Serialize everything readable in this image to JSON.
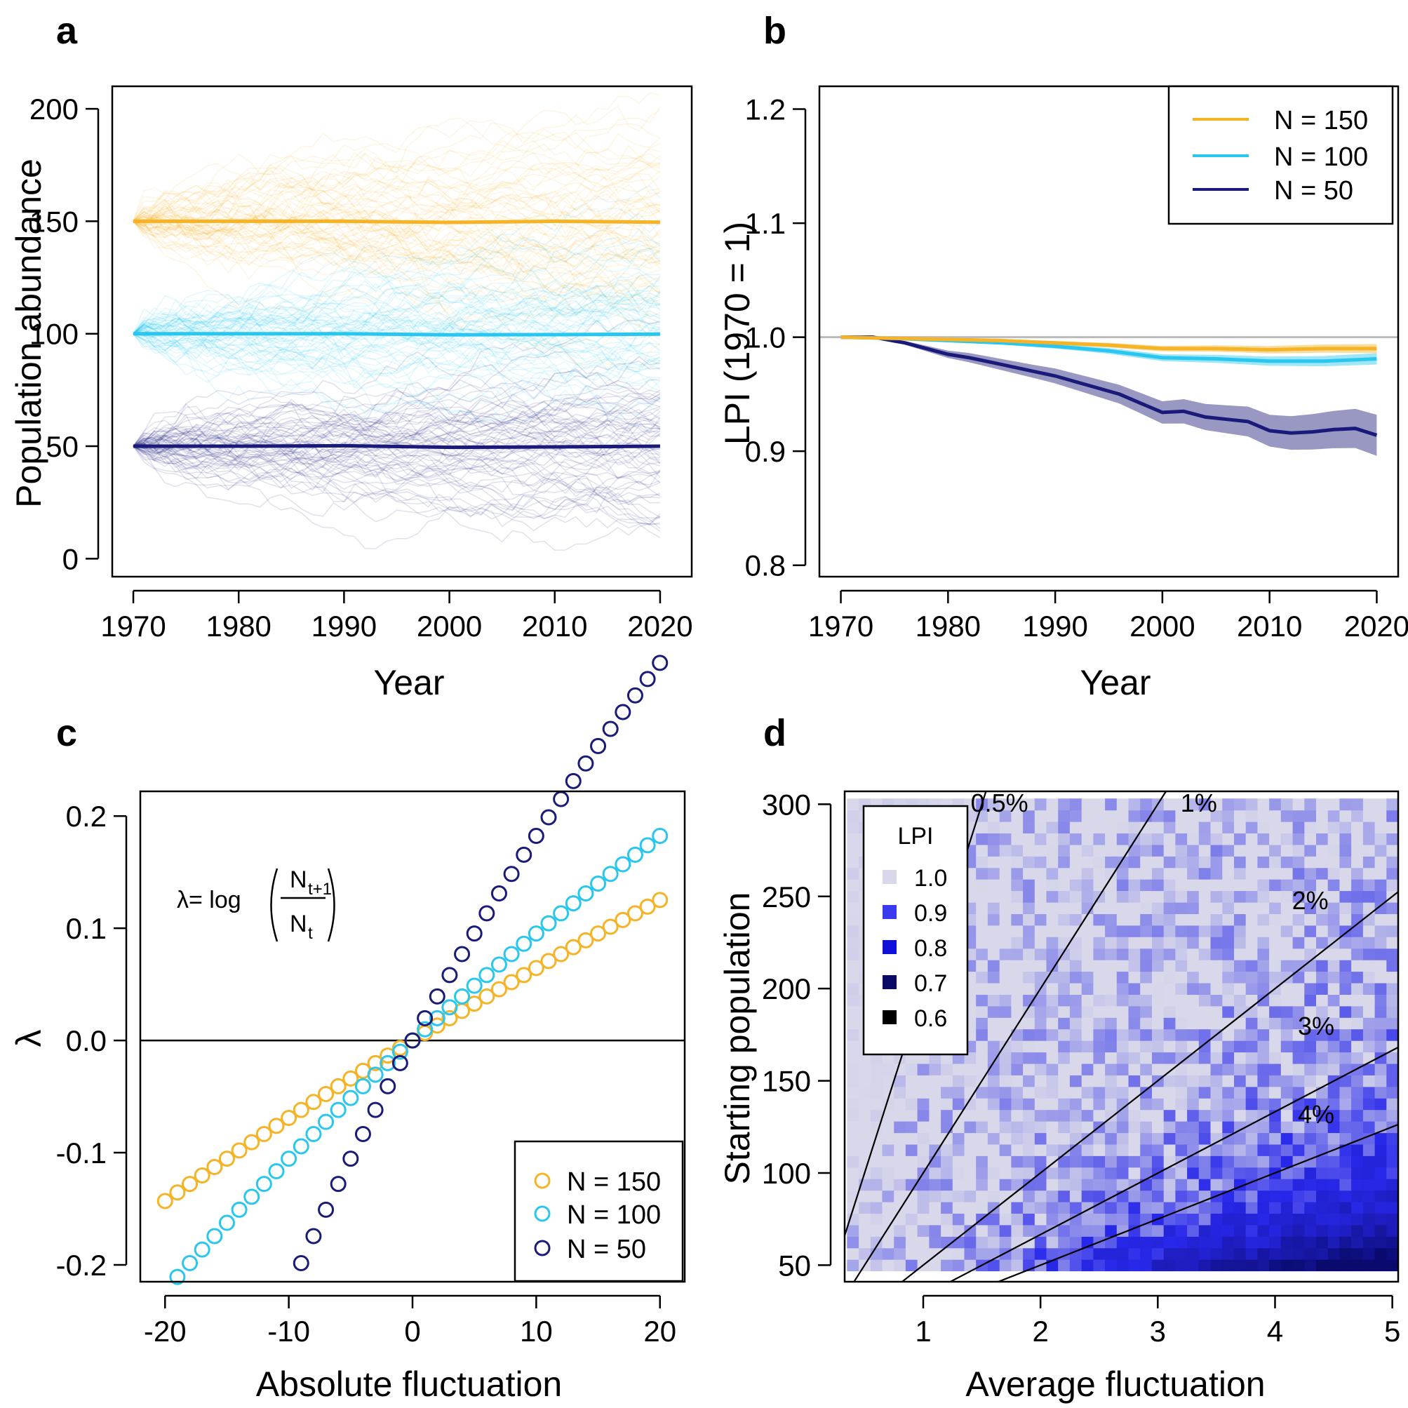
{
  "colors": {
    "N150": "#F5B325",
    "N100": "#29C7F0",
    "N50": "#1A1A7A",
    "grid_ref": "#BBBBBB",
    "heat_1_0": "#D8D8EA",
    "heat_0_9": "#3A3AF0",
    "heat_0_8": "#1010D8",
    "heat_0_7": "#0A0A66",
    "heat_0_6": "#000000"
  },
  "chart_data": [
    {
      "panel": "a",
      "type": "line",
      "xlabel": "Year",
      "ylabel": "Population abundance",
      "xlim": [
        1968,
        2023
      ],
      "ylim": [
        -8,
        210
      ],
      "xticks": [
        "1970",
        "1980",
        "1990",
        "2000",
        "2010",
        "2020"
      ],
      "yticks": [
        "0",
        "50",
        "100",
        "150",
        "200"
      ],
      "series": [
        {
          "name": "N = 150",
          "x": [
            1970,
            1980,
            1990,
            2000,
            2010,
            2020
          ],
          "y": [
            150,
            150,
            150,
            149.5,
            150,
            149.6
          ],
          "spread_sd_start": 0,
          "spread_sd_end": 26
        },
        {
          "name": "N = 100",
          "x": [
            1970,
            1980,
            1990,
            2000,
            2010,
            2020
          ],
          "y": [
            100,
            100,
            100,
            99.5,
            99.6,
            99.8
          ],
          "spread_sd_start": 0,
          "spread_sd_end": 24
        },
        {
          "name": "N = 50",
          "x": [
            1970,
            1980,
            1990,
            2000,
            2010,
            2020
          ],
          "y": [
            50,
            50,
            50.2,
            49.5,
            49.7,
            50
          ],
          "spread_sd_start": 0,
          "spread_sd_end": 20
        }
      ]
    },
    {
      "panel": "b",
      "type": "line",
      "xlabel": "Year",
      "ylabel": "LPI (1970 = 1)",
      "xlim": [
        1968,
        2022
      ],
      "ylim": [
        0.79,
        1.22
      ],
      "xticks": [
        "1970",
        "1980",
        "1990",
        "2000",
        "2010",
        "2020"
      ],
      "yticks": [
        "0.8",
        "0.9",
        "1.0",
        "1.1",
        "1.2"
      ],
      "reference_line": 1.0,
      "legend_position": "top-right",
      "series": [
        {
          "name": "N = 150",
          "x": [
            1970,
            1975,
            1980,
            1985,
            1990,
            1995,
            2000,
            2005,
            2010,
            2015,
            2020
          ],
          "y": [
            1.0,
            0.999,
            0.998,
            0.997,
            0.995,
            0.993,
            0.99,
            0.99,
            0.989,
            0.99,
            0.99
          ],
          "band": 0.004
        },
        {
          "name": "N = 100",
          "x": [
            1970,
            1975,
            1980,
            1985,
            1990,
            1995,
            2000,
            2005,
            2010,
            2015,
            2020
          ],
          "y": [
            1.0,
            0.999,
            0.997,
            0.995,
            0.992,
            0.988,
            0.982,
            0.981,
            0.979,
            0.979,
            0.981
          ],
          "band": 0.005
        },
        {
          "name": "N = 50",
          "x": [
            1970,
            1973,
            1976,
            1978,
            1980,
            1982,
            1985,
            1988,
            1990,
            1993,
            1996,
            1998,
            2000,
            2002,
            2004,
            2006,
            2008,
            2010,
            2012,
            2014,
            2016,
            2018,
            2020
          ],
          "y": [
            1.0,
            1.0,
            0.995,
            0.99,
            0.985,
            0.982,
            0.976,
            0.97,
            0.966,
            0.958,
            0.95,
            0.942,
            0.934,
            0.935,
            0.93,
            0.928,
            0.926,
            0.918,
            0.916,
            0.917,
            0.919,
            0.92,
            0.914
          ],
          "band": 0.018
        }
      ]
    },
    {
      "panel": "c",
      "type": "scatter",
      "xlabel": "Absolute fluctuation",
      "ylabel": "λ",
      "xlim": [
        -22,
        22
      ],
      "ylim": [
        -0.215,
        0.222
      ],
      "xticks": [
        "-20",
        "-10",
        "0",
        "10",
        "20"
      ],
      "yticks": [
        "-0.2",
        "-0.1",
        "0.0",
        "0.1",
        "0.2"
      ],
      "x_range": [
        -20,
        20
      ],
      "x_step": 1,
      "formula_prefix": "λ= log",
      "formula_numerator": "N",
      "formula_numerator_sub": "t+1",
      "formula_denominator": "N",
      "formula_denominator_sub": "t",
      "legend_position": "bottom-right",
      "series": [
        {
          "name": "N = 150",
          "population": 150
        },
        {
          "name": "N = 100",
          "population": 100
        },
        {
          "name": "N = 50",
          "population": 50
        }
      ]
    },
    {
      "panel": "d",
      "type": "heatmap",
      "xlabel": "Average fluctuation",
      "ylabel": "Starting population",
      "xlim": [
        0.33,
        5.05
      ],
      "ylim": [
        41,
        307
      ],
      "xticks": [
        "1",
        "2",
        "3",
        "4",
        "5"
      ],
      "yticks": [
        "50",
        "100",
        "150",
        "200",
        "250",
        "300"
      ],
      "x_range": [
        0.4,
        5.0
      ],
      "y_range": [
        50,
        300
      ],
      "legend_title": "LPI",
      "legend_position": "top-left",
      "legend_levels": [
        "1.0",
        "0.9",
        "0.8",
        "0.7",
        "0.6"
      ],
      "contours": [
        {
          "label": "0.5%",
          "slope": 200
        },
        {
          "label": "1%",
          "slope": 100
        },
        {
          "label": "2%",
          "slope": 50
        },
        {
          "label": "3%",
          "slope": 33.3
        },
        {
          "label": "4%",
          "slope": 25
        }
      ]
    }
  ],
  "panel_letters": [
    "a",
    "b",
    "c",
    "d"
  ]
}
